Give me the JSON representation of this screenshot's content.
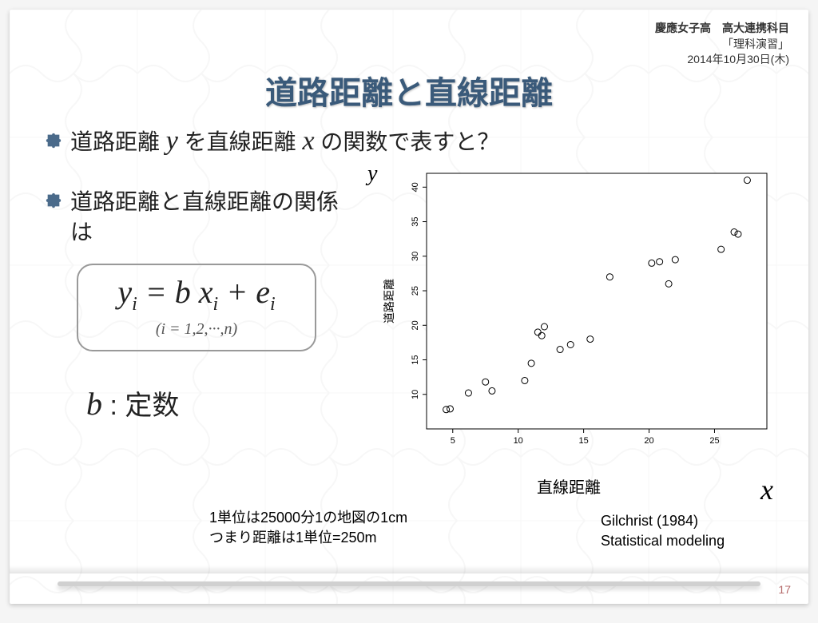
{
  "meta": {
    "school": "慶應女子高　高大連携科目",
    "course": "「理科演習」",
    "date": "2014年10月30日(木)"
  },
  "title": "道路距離と直線距離",
  "bullets": {
    "b1_pre": "道路距離 ",
    "b1_yvar": "y",
    "b1_mid": " を直線距離 ",
    "b1_xvar": "x",
    "b1_post": " の関数で表すと？",
    "b2": "道路距離と直線距離の関係は"
  },
  "equation": {
    "main_html": "y<sub>i</sub> = b x<sub>i</sub> + e<sub>i</sub>",
    "range": "(i = 1,2,···,n)"
  },
  "b_const": {
    "b": "b",
    "sep": " : ",
    "label": "定数"
  },
  "chart": {
    "type": "scatter",
    "y_variable": "y",
    "x_variable": "x",
    "ylabel": "道路距離",
    "xlabel": "直線距離",
    "x_ticks": [
      5,
      10,
      15,
      20,
      25
    ],
    "y_ticks": [
      10,
      15,
      20,
      25,
      30,
      35,
      40
    ],
    "xlim": [
      3,
      29
    ],
    "ylim": [
      5,
      42
    ],
    "background": "#ffffff",
    "border_color": "#000000",
    "tick_fontsize": 11,
    "label_fontsize": 14,
    "marker": "circle-open",
    "marker_size": 5,
    "marker_color": "#000000",
    "points": [
      [
        4.5,
        7.8
      ],
      [
        4.8,
        7.9
      ],
      [
        6.2,
        10.2
      ],
      [
        7.5,
        11.8
      ],
      [
        8.0,
        10.5
      ],
      [
        10.5,
        12.0
      ],
      [
        11.0,
        14.5
      ],
      [
        11.5,
        19.0
      ],
      [
        11.8,
        18.5
      ],
      [
        12.0,
        19.8
      ],
      [
        13.2,
        16.5
      ],
      [
        14.0,
        17.2
      ],
      [
        15.5,
        18.0
      ],
      [
        17.0,
        27.0
      ],
      [
        20.2,
        29.0
      ],
      [
        20.8,
        29.2
      ],
      [
        21.5,
        26.0
      ],
      [
        22.0,
        29.5
      ],
      [
        25.5,
        31.0
      ],
      [
        26.5,
        33.5
      ],
      [
        26.8,
        33.2
      ],
      [
        27.5,
        41.0
      ]
    ]
  },
  "footnote": {
    "line1": "1単位は25000分1の地図の1cm",
    "line2": "つまり距離は1単位=250m"
  },
  "citation": {
    "line1": "Gilchrist (1984)",
    "line2": "Statistical modeling"
  },
  "page_number": "17",
  "colors": {
    "title": "#3a5a7a",
    "text": "#222222",
    "border": "#999999",
    "page_num": "#b56b6b",
    "bullet": "#4a6a8a"
  }
}
